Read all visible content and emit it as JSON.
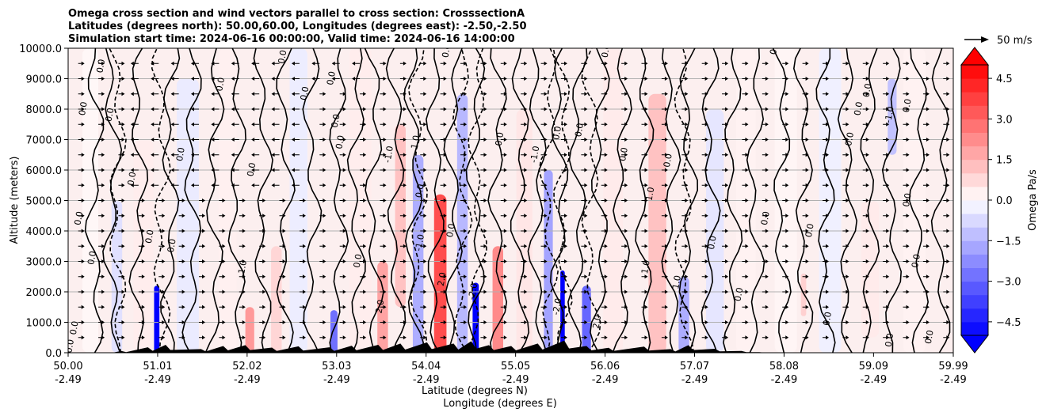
{
  "chart_data": {
    "type": "contour",
    "title_lines": [
      "Omega cross section and wind vectors parallel to cross section: CrosssectionA",
      "Latitudes (degrees north): 50.00,60.00, Longitudes (degrees east): -2.50,-2.50",
      "Simulation start time: 2024-06-16 00:00:00, Valid time: 2024-06-16 14:00:00"
    ],
    "ylabel": "Altitude (meters)",
    "xlabel_lines": [
      "Latitude (degrees N)",
      "Longitude (degrees E)"
    ],
    "x_range": [
      50.0,
      59.99
    ],
    "ylim": [
      0,
      10000
    ],
    "x_ticks": [
      {
        "lat": "50.00",
        "lon": "-2.49",
        "value": 50.0
      },
      {
        "lat": "51.01",
        "lon": "-2.49",
        "value": 51.01
      },
      {
        "lat": "52.02",
        "lon": "-2.49",
        "value": 52.02
      },
      {
        "lat": "53.03",
        "lon": "-2.49",
        "value": 53.03
      },
      {
        "lat": "54.04",
        "lon": "-2.49",
        "value": 54.04
      },
      {
        "lat": "55.05",
        "lon": "-2.49",
        "value": 55.05
      },
      {
        "lat": "56.06",
        "lon": "-2.49",
        "value": 56.06
      },
      {
        "lat": "57.07",
        "lon": "-2.49",
        "value": 57.07
      },
      {
        "lat": "58.08",
        "lon": "-2.49",
        "value": 58.08
      },
      {
        "lat": "59.09",
        "lon": "-2.49",
        "value": 59.09
      },
      {
        "lat": "59.99",
        "lon": "-2.49",
        "value": 59.99
      }
    ],
    "y_ticks": [
      {
        "label": "0.0",
        "value": 0
      },
      {
        "label": "1000.0",
        "value": 1000
      },
      {
        "label": "2000.0",
        "value": 2000
      },
      {
        "label": "3000.0",
        "value": 3000
      },
      {
        "label": "4000.0",
        "value": 4000
      },
      {
        "label": "5000.0",
        "value": 5000
      },
      {
        "label": "6000.0",
        "value": 6000
      },
      {
        "label": "7000.0",
        "value": 7000
      },
      {
        "label": "8000.0",
        "value": 8000
      },
      {
        "label": "9000.0",
        "value": 9000
      },
      {
        "label": "10000.0",
        "value": 10000
      }
    ],
    "grid": "horizontal",
    "colorbar": {
      "label": "Omega Pa/s",
      "range": [
        -5.0,
        5.0
      ],
      "levels": 21,
      "ticks": [
        {
          "label": "4.5",
          "value": 4.5
        },
        {
          "label": "3.0",
          "value": 3.0
        },
        {
          "label": "1.5",
          "value": 1.5
        },
        {
          "label": "0.0",
          "value": 0.0
        },
        {
          "label": "−1.5",
          "value": -1.5
        },
        {
          "label": "−3.0",
          "value": -3.0
        },
        {
          "label": "−4.5",
          "value": -4.5
        }
      ],
      "extend": "both",
      "neg_color": "#0000ff",
      "pos_color": "#ff0000"
    },
    "quiver_key": {
      "label": "50 m/s"
    },
    "contour_levels_labelled": [
      "0.0",
      "1.0",
      "-1.0",
      "2.0",
      "-2.0"
    ],
    "omega_regions": [
      {
        "x": 50.25,
        "y0": 0,
        "y1": 10000,
        "w": 0.18,
        "v": 0.15
      },
      {
        "x": 50.55,
        "y0": 0,
        "y1": 5000,
        "w": 0.12,
        "v": -0.6
      },
      {
        "x": 50.85,
        "y0": 0,
        "y1": 7000,
        "w": 0.22,
        "v": 0.35
      },
      {
        "x": 51.0,
        "y0": 0,
        "y1": 2200,
        "w": 0.06,
        "v": -5.0
      },
      {
        "x": 51.35,
        "y0": 0,
        "y1": 9000,
        "w": 0.25,
        "v": -0.4
      },
      {
        "x": 51.8,
        "y0": 0,
        "y1": 10000,
        "w": 0.2,
        "v": 0.3
      },
      {
        "x": 52.05,
        "y0": 0,
        "y1": 1500,
        "w": 0.1,
        "v": 2.0
      },
      {
        "x": 52.35,
        "y0": 0,
        "y1": 3500,
        "w": 0.12,
        "v": 0.8
      },
      {
        "x": 52.6,
        "y0": 0,
        "y1": 10000,
        "w": 0.2,
        "v": -0.35
      },
      {
        "x": 53.0,
        "y0": 0,
        "y1": 1400,
        "w": 0.08,
        "v": -2.8
      },
      {
        "x": 53.3,
        "y0": 0,
        "y1": 10000,
        "w": 0.25,
        "v": 0.35
      },
      {
        "x": 53.55,
        "y0": 0,
        "y1": 3000,
        "w": 0.12,
        "v": 1.8
      },
      {
        "x": 53.75,
        "y0": 1500,
        "y1": 7500,
        "w": 0.12,
        "v": 1.2
      },
      {
        "x": 53.95,
        "y0": 0,
        "y1": 6500,
        "w": 0.12,
        "v": -1.6
      },
      {
        "x": 54.2,
        "y0": 0,
        "y1": 5200,
        "w": 0.14,
        "v": 3.5
      },
      {
        "x": 54.45,
        "y0": 0,
        "y1": 8500,
        "w": 0.12,
        "v": -1.4
      },
      {
        "x": 54.6,
        "y0": 0,
        "y1": 2300,
        "w": 0.07,
        "v": -5.0
      },
      {
        "x": 54.85,
        "y0": 0,
        "y1": 3500,
        "w": 0.12,
        "v": 2.3
      },
      {
        "x": 55.15,
        "y0": 0,
        "y1": 8000,
        "w": 0.18,
        "v": 0.5
      },
      {
        "x": 55.42,
        "y0": 0,
        "y1": 6000,
        "w": 0.1,
        "v": -1.8
      },
      {
        "x": 55.58,
        "y0": 0,
        "y1": 2700,
        "w": 0.05,
        "v": -5.0
      },
      {
        "x": 55.85,
        "y0": 0,
        "y1": 2200,
        "w": 0.1,
        "v": -3.0
      },
      {
        "x": 56.15,
        "y0": 0,
        "y1": 10000,
        "w": 0.22,
        "v": 0.4
      },
      {
        "x": 56.65,
        "y0": 0,
        "y1": 8500,
        "w": 0.2,
        "v": 1.2
      },
      {
        "x": 56.95,
        "y0": 0,
        "y1": 2500,
        "w": 0.12,
        "v": -1.6
      },
      {
        "x": 57.3,
        "y0": 0,
        "y1": 8000,
        "w": 0.2,
        "v": -0.5
      },
      {
        "x": 57.65,
        "y0": 0,
        "y1": 10000,
        "w": 0.22,
        "v": 0.25
      },
      {
        "x": 58.1,
        "y0": 0,
        "y1": 10000,
        "w": 0.25,
        "v": 0.2
      },
      {
        "x": 58.3,
        "y0": 1200,
        "y1": 2600,
        "w": 0.06,
        "v": 0.9
      },
      {
        "x": 58.6,
        "y0": 0,
        "y1": 10000,
        "w": 0.25,
        "v": -0.3
      },
      {
        "x": 59.05,
        "y0": 500,
        "y1": 5000,
        "w": 0.2,
        "v": 0.4
      },
      {
        "x": 59.3,
        "y0": 6500,
        "y1": 9000,
        "w": 0.1,
        "v": -1.2
      },
      {
        "x": 59.55,
        "y0": 0,
        "y1": 10000,
        "w": 0.25,
        "v": 0.25
      }
    ],
    "contour_x_positions": [
      50.3,
      50.5,
      50.8,
      51.15,
      51.4,
      51.65,
      51.9,
      52.2,
      52.45,
      52.75,
      53.05,
      53.25,
      53.45,
      53.7,
      53.9,
      54.15,
      54.35,
      54.6,
      54.85,
      55.1,
      55.3,
      55.55,
      55.75,
      56.0,
      56.25,
      56.5,
      56.8,
      57.0,
      57.25,
      57.5,
      57.75,
      58.05,
      58.3,
      58.55,
      58.8,
      59.05,
      59.3,
      59.6,
      59.85
    ],
    "dashed_contour_x_positions": [
      50.55,
      51.05,
      53.95,
      54.45,
      54.62,
      55.42,
      55.58,
      55.9,
      56.95
    ],
    "contour_labels": [
      {
        "text": "0.0",
        "x": 50.05,
        "y": 200
      },
      {
        "text": "0.0",
        "x": 50.1,
        "y": 800
      },
      {
        "text": "0.0",
        "x": 50.15,
        "y": 4400
      },
      {
        "text": "0.0",
        "x": 50.2,
        "y": 8000
      },
      {
        "text": "0.0",
        "x": 50.3,
        "y": 3100
      },
      {
        "text": "0.0",
        "x": 50.4,
        "y": 9400
      },
      {
        "text": "0.0",
        "x": 50.5,
        "y": 7800
      },
      {
        "text": "0.0",
        "x": 50.75,
        "y": 5700
      },
      {
        "text": "0.0",
        "x": 50.95,
        "y": 3800
      },
      {
        "text": "0.0",
        "x": 51.2,
        "y": 3500
      },
      {
        "text": "0.0",
        "x": 51.3,
        "y": 6500
      },
      {
        "text": "0.0",
        "x": 51.75,
        "y": 8800
      },
      {
        "text": "0.0",
        "x": 52.1,
        "y": 6000
      },
      {
        "text": "1.0",
        "x": 52.0,
        "y": 2800
      },
      {
        "text": "0.0",
        "x": 52.45,
        "y": 9700
      },
      {
        "text": "0.0",
        "x": 52.7,
        "y": 8500
      },
      {
        "text": "0.0",
        "x": 53.0,
        "y": 9000
      },
      {
        "text": "0.0",
        "x": 53.05,
        "y": 7600
      },
      {
        "text": "0.0",
        "x": 53.1,
        "y": 6900
      },
      {
        "text": "0.0",
        "x": 53.3,
        "y": 3000
      },
      {
        "text": "-1.0",
        "x": 53.65,
        "y": 6500
      },
      {
        "text": "1.0",
        "x": 53.95,
        "y": 6900
      },
      {
        "text": "0.0",
        "x": 54.0,
        "y": 5300
      },
      {
        "text": "-1.0",
        "x": 54.0,
        "y": 3600
      },
      {
        "text": "0.0",
        "x": 54.3,
        "y": 9900
      },
      {
        "text": "0.0",
        "x": 54.35,
        "y": 4000
      },
      {
        "text": "0.0",
        "x": 54.9,
        "y": 7000
      },
      {
        "text": "-1.0",
        "x": 55.3,
        "y": 6500
      },
      {
        "text": "0.0",
        "x": 55.55,
        "y": 7200
      },
      {
        "text": "0.0",
        "x": 55.8,
        "y": 7300
      },
      {
        "text": "0.0",
        "x": 56.1,
        "y": 9900
      },
      {
        "text": "0.0",
        "x": 56.3,
        "y": 6500
      },
      {
        "text": "1.0",
        "x": 56.6,
        "y": 5200
      },
      {
        "text": "1.0",
        "x": 56.55,
        "y": 2800
      },
      {
        "text": "1.0",
        "x": 56.9,
        "y": 2300
      },
      {
        "text": "0.0",
        "x": 56.8,
        "y": 6300
      },
      {
        "text": "0.0",
        "x": 57.3,
        "y": 3600
      },
      {
        "text": "0.0",
        "x": 57.6,
        "y": 1900
      },
      {
        "text": "0.0",
        "x": 57.9,
        "y": 4400
      },
      {
        "text": "0.0",
        "x": 58.0,
        "y": 10000
      },
      {
        "text": "0.0",
        "x": 58.4,
        "y": 4000
      },
      {
        "text": "0.0",
        "x": 58.6,
        "y": 1100
      },
      {
        "text": "0.0",
        "x": 58.85,
        "y": 7000
      },
      {
        "text": "0.0",
        "x": 58.95,
        "y": 8000
      },
      {
        "text": "0.0",
        "x": 59.05,
        "y": 8600
      },
      {
        "text": "-1.0",
        "x": 59.3,
        "y": 7800
      },
      {
        "text": "0.0",
        "x": 59.5,
        "y": 8100
      },
      {
        "text": "0.0",
        "x": 59.6,
        "y": 3000
      },
      {
        "text": "0.0",
        "x": 59.5,
        "y": 5000
      },
      {
        "text": "0.0",
        "x": 59.3,
        "y": 400
      },
      {
        "text": "0.0",
        "x": 59.75,
        "y": 500
      },
      {
        "text": "2.0",
        "x": 53.55,
        "y": 1500
      },
      {
        "text": "2.0",
        "x": 54.25,
        "y": 2400
      },
      {
        "text": "-2.0",
        "x": 54.6,
        "y": 2000
      },
      {
        "text": "-2.0",
        "x": 55.55,
        "y": 1500
      },
      {
        "text": "2.0",
        "x": 56.0,
        "y": 1000
      }
    ],
    "terrain_peaks": [
      {
        "x": 50.6,
        "h": 60
      },
      {
        "x": 50.9,
        "h": 180
      },
      {
        "x": 51.1,
        "h": 260
      },
      {
        "x": 51.5,
        "h": 120
      },
      {
        "x": 51.75,
        "h": 220
      },
      {
        "x": 52.0,
        "h": 250
      },
      {
        "x": 52.3,
        "h": 170
      },
      {
        "x": 52.6,
        "h": 210
      },
      {
        "x": 52.95,
        "h": 180
      },
      {
        "x": 53.2,
        "h": 230
      },
      {
        "x": 53.5,
        "h": 260
      },
      {
        "x": 53.75,
        "h": 300
      },
      {
        "x": 54.05,
        "h": 340
      },
      {
        "x": 54.35,
        "h": 300
      },
      {
        "x": 54.55,
        "h": 380
      },
      {
        "x": 54.75,
        "h": 250
      },
      {
        "x": 55.0,
        "h": 220
      },
      {
        "x": 55.3,
        "h": 300
      },
      {
        "x": 55.6,
        "h": 400
      },
      {
        "x": 55.85,
        "h": 220
      },
      {
        "x": 56.1,
        "h": 160
      },
      {
        "x": 56.5,
        "h": 200
      },
      {
        "x": 56.8,
        "h": 120
      },
      {
        "x": 57.0,
        "h": 250
      },
      {
        "x": 57.3,
        "h": 130
      },
      {
        "x": 57.6,
        "h": 60
      },
      {
        "x": 57.8,
        "h": 20
      }
    ]
  }
}
